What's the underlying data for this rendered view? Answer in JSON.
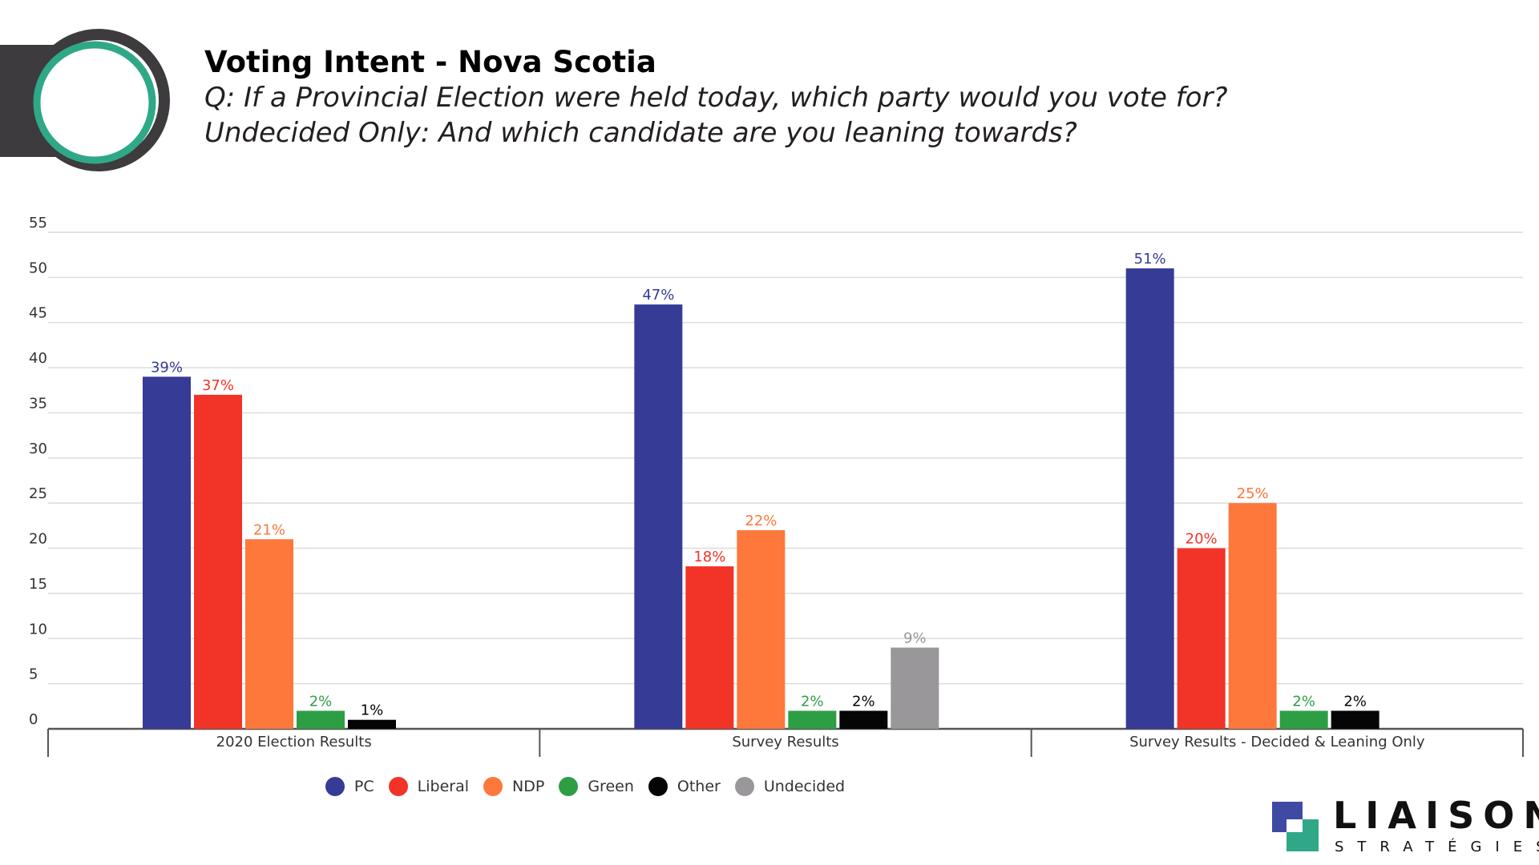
{
  "header": {
    "title": "Voting Intent - Nova Scotia",
    "subtitle_line1": "Q: If a Provincial Election were held today, which party would you vote for?",
    "subtitle_line2": "Undecided Only: And which candidate are you leaning towards?"
  },
  "colors": {
    "PC": "#363b96",
    "Liberal": "#f23328",
    "NDP": "#fe773b",
    "Green": "#2e9e45",
    "Other": "#050505",
    "Undecided": "#999799",
    "ring_green": "#2fa888",
    "ring_dark": "#3d3b3e"
  },
  "chart_data": {
    "type": "bar",
    "title": "Voting Intent - Nova Scotia",
    "categories": [
      "2020 Election Results",
      "Survey Results",
      "Survey Results - Decided & Leaning Only"
    ],
    "series": [
      {
        "name": "PC",
        "values": [
          39,
          47,
          51
        ]
      },
      {
        "name": "Liberal",
        "values": [
          37,
          18,
          20
        ]
      },
      {
        "name": "NDP",
        "values": [
          21,
          22,
          25
        ]
      },
      {
        "name": "Green",
        "values": [
          2,
          2,
          2
        ]
      },
      {
        "name": "Other",
        "values": [
          1,
          2,
          2
        ]
      },
      {
        "name": "Undecided",
        "values": [
          null,
          9,
          null
        ]
      }
    ],
    "value_suffix": "%",
    "ylim": [
      0,
      55
    ],
    "yticks": [
      0,
      5,
      10,
      15,
      20,
      25,
      30,
      35,
      40,
      45,
      50,
      55
    ],
    "grid": true,
    "legend_position": "bottom"
  },
  "logo": {
    "main": "LIAISON",
    "sub": "STRATÉGIES"
  }
}
